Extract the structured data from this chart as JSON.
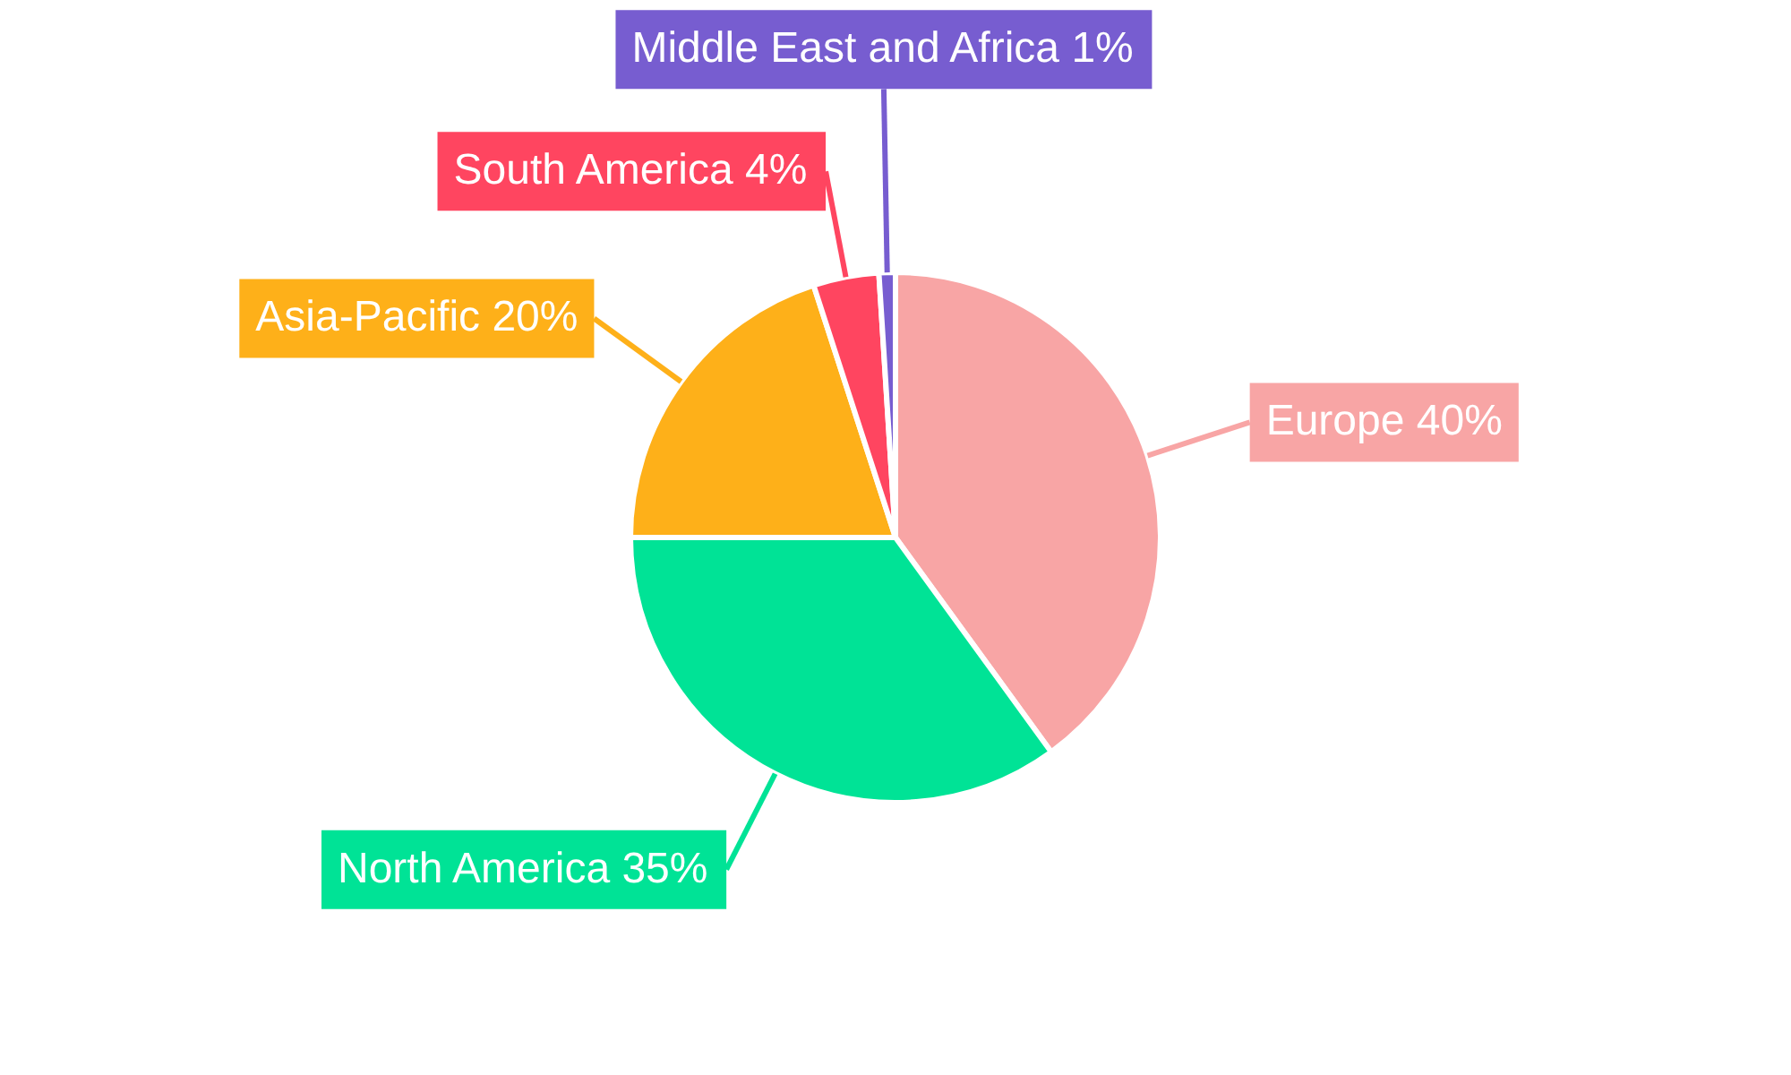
{
  "chart_data": {
    "type": "pie",
    "categories": [
      "Europe",
      "North America",
      "Asia-Pacific",
      "South America",
      "Middle East and Africa"
    ],
    "values": [
      40,
      35,
      20,
      4,
      1
    ],
    "colors": [
      "#f8a5a5",
      "#00e396",
      "#feb019",
      "#ff4560",
      "#775dd0"
    ],
    "value_labels": [
      "40%",
      "35%",
      "20%",
      "4%",
      "1%"
    ]
  }
}
